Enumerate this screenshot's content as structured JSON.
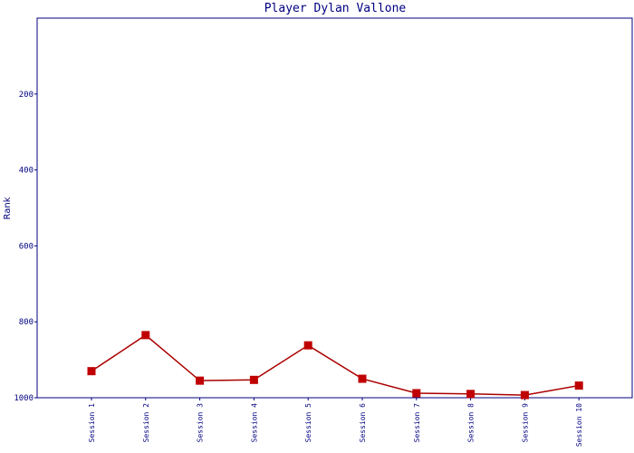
{
  "chart_data": {
    "type": "line",
    "title": "Player Dylan Vallone",
    "xlabel": "",
    "ylabel": "Rank",
    "categories": [
      "Session 1",
      "Session 2",
      "Session 3",
      "Session 4",
      "Session 5",
      "Session 6",
      "Session 7",
      "Session 8",
      "Session 9",
      "Session 10"
    ],
    "series": [
      {
        "values": [
          930,
          835,
          955,
          953,
          862,
          950,
          988,
          990,
          993,
          968
        ]
      }
    ],
    "ylim": [
      1000,
      0
    ],
    "y_reversed": true,
    "yticks": [
      "200",
      "400",
      "600",
      "800",
      "1000"
    ],
    "grid": false,
    "colors": {
      "axis": "#000080",
      "line": "#aa0000",
      "marker": "#c00000"
    }
  }
}
